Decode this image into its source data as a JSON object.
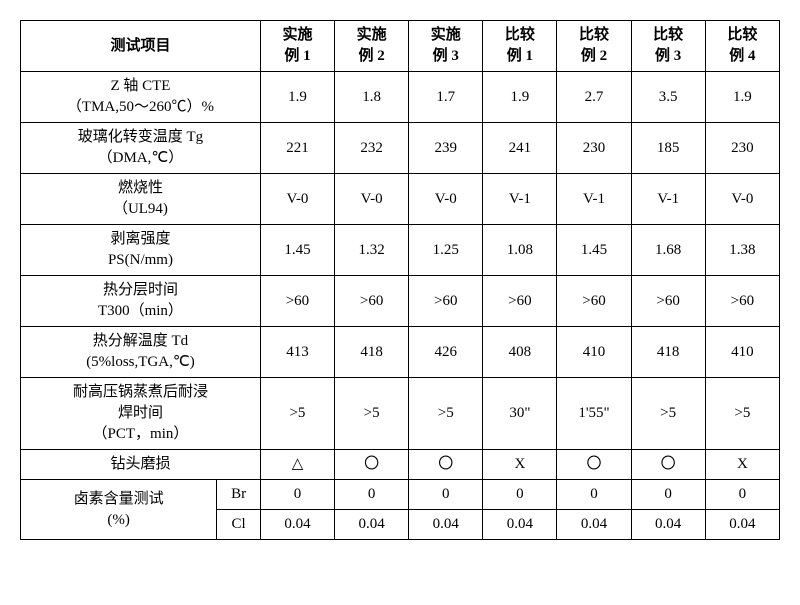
{
  "header": {
    "test_item": "测试项目",
    "cols": [
      "实施\n例 1",
      "实施\n例 2",
      "实施\n例 3",
      "比较\n例 1",
      "比较\n例 2",
      "比较\n例 3",
      "比较\n例 4"
    ]
  },
  "rows": [
    {
      "label": "Z 轴 CTE\n（TMA,50～260℃）%",
      "vals": [
        "1.9",
        "1.8",
        "1.7",
        "1.9",
        "2.7",
        "3.5",
        "1.9"
      ]
    },
    {
      "label": "玻璃化转变温度 Tg\n（DMA,℃）",
      "vals": [
        "221",
        "232",
        "239",
        "241",
        "230",
        "185",
        "230"
      ]
    },
    {
      "label": "燃烧性\n（UL94)",
      "vals": [
        "V-0",
        "V-0",
        "V-0",
        "V-1",
        "V-1",
        "V-1",
        "V-0"
      ]
    },
    {
      "label": "剥离强度\nPS(N/mm)",
      "vals": [
        "1.45",
        "1.32",
        "1.25",
        "1.08",
        "1.45",
        "1.68",
        "1.38"
      ]
    },
    {
      "label": "热分层时间\nT300（min）",
      "vals": [
        ">60",
        ">60",
        ">60",
        ">60",
        ">60",
        ">60",
        ">60"
      ]
    },
    {
      "label": "热分解温度 Td\n(5%loss,TGA,℃)",
      "vals": [
        "413",
        "418",
        "426",
        "408",
        "410",
        "418",
        "410"
      ]
    },
    {
      "label": "耐高压锅蒸煮后耐浸\n焊时间\n（PCT，min）",
      "vals": [
        ">5",
        ">5",
        ">5",
        "30\"",
        "1'55\"",
        ">5",
        ">5"
      ]
    },
    {
      "label": "钻头磨损",
      "vals": [
        "△",
        "〇",
        "〇",
        "X",
        "〇",
        "〇",
        "X"
      ]
    }
  ],
  "halogen": {
    "label": "卤素含量测试\n(%)",
    "rows": [
      {
        "sub": "Br",
        "vals": [
          "0",
          "0",
          "0",
          "0",
          "0",
          "0",
          "0"
        ]
      },
      {
        "sub": "Cl",
        "vals": [
          "0.04",
          "0.04",
          "0.04",
          "0.04",
          "0.04",
          "0.04",
          "0.04"
        ]
      }
    ]
  },
  "style": {
    "font_size": 15,
    "border_color": "#000000",
    "background": "#ffffff",
    "text_color": "#000000"
  }
}
